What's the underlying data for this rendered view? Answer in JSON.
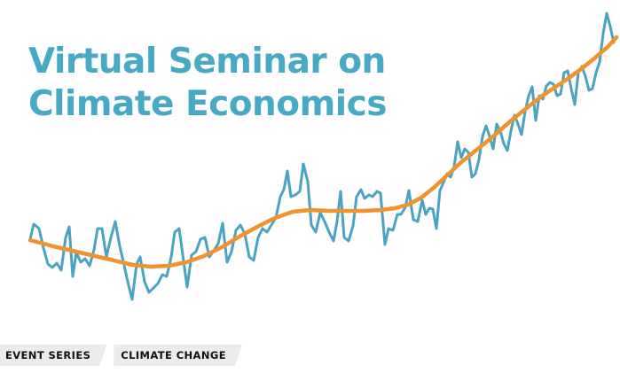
{
  "banner": {
    "title_line1": "Virtual Seminar on",
    "title_line2": "Climate Economics",
    "colors": {
      "title": "#48a9c5",
      "noisy_line": "#4ba3c3",
      "smooth_line": "#f0922e",
      "background": "#ffffff"
    }
  },
  "tags": [
    {
      "label": "EVENT SERIES"
    },
    {
      "label": "CLIMATE CHANGE"
    }
  ]
}
